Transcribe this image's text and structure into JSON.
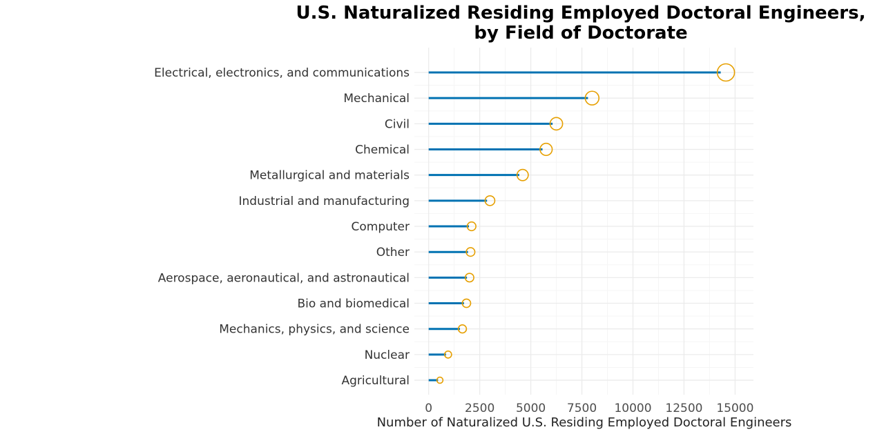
{
  "chart_data": {
    "type": "lollipop",
    "title_lines": [
      "U.S. Naturalized Residing Employed Doctoral Engineers,",
      "by Field of Doctorate"
    ],
    "xlabel": "Number of Naturalized U.S. Residing Employed Doctoral Engineers",
    "ylabel": "",
    "xlim": [
      -700,
      15900
    ],
    "xticks": [
      0,
      2500,
      5000,
      7500,
      10000,
      12500,
      15000
    ],
    "xtick_labels": [
      "0",
      "2500",
      "5000",
      "7500",
      "10000",
      "12500",
      "15000"
    ],
    "grid": true,
    "categories": [
      "Electrical, electronics, and communications",
      "Mechanical",
      "Civil",
      "Chemical",
      "Metallurgical and materials",
      "Industrial and manufacturing",
      "Computer",
      "Other",
      "Aerospace, aeronautical, and astronautical",
      "Bio and biomedical",
      "Mechanics, physics, and science",
      "Nuclear",
      "Agricultural"
    ],
    "values": [
      14550,
      8000,
      6250,
      5750,
      4600,
      3000,
      2100,
      2050,
      2000,
      1850,
      1650,
      950,
      550
    ],
    "colors": {
      "stem": "#0072b2",
      "marker": "#e69f00",
      "grid_major": "#ebebeb",
      "grid_minor": "#f5f5f5"
    }
  }
}
